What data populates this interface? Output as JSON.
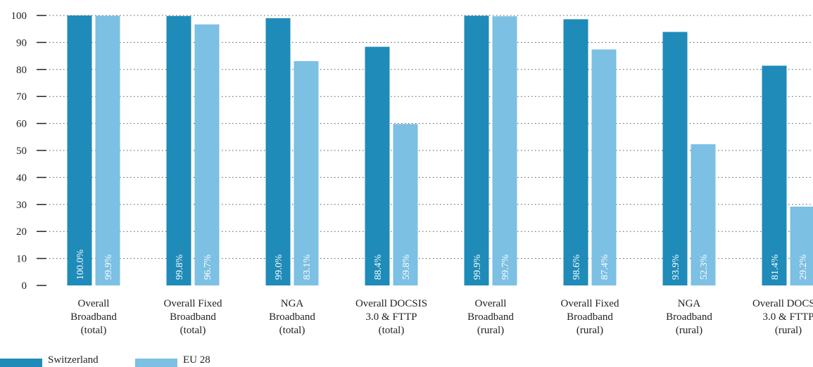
{
  "chart_data": {
    "type": "bar",
    "ylim": [
      0,
      100
    ],
    "yticks": [
      0,
      10,
      20,
      30,
      40,
      50,
      60,
      70,
      80,
      90,
      100
    ],
    "grid": "dotted-horizontal",
    "legend_placement": "bottom-left",
    "categories": [
      [
        "Overall",
        "Broadband",
        "(total)"
      ],
      [
        "Overall Fixed",
        "Broadband",
        "(total)"
      ],
      [
        "NGA",
        "Broadband",
        "(total)"
      ],
      [
        "Overall DOCSIS",
        "3.0 & FTTP",
        "(total)"
      ],
      [
        "Overall",
        "Broadband",
        "(rural)"
      ],
      [
        "Overall Fixed",
        "Broadband",
        "(rural)"
      ],
      [
        "NGA",
        "Broadband",
        "(rural)"
      ],
      [
        "Overall DOCSIS",
        "3.0 & FTTP",
        "(rural)"
      ]
    ],
    "series": [
      {
        "name": "Switzerland",
        "color": "#1f8bb8",
        "values": [
          100.0,
          99.8,
          99.0,
          88.4,
          99.9,
          98.6,
          93.9,
          81.4
        ],
        "labels": [
          "100.0%",
          "99.8%",
          "99.0%",
          "88.4%",
          "99.9%",
          "98.6%",
          "93.9%",
          "81.4%"
        ]
      },
      {
        "name": "EU 28",
        "color": "#7cc0e3",
        "values": [
          99.9,
          96.7,
          83.1,
          59.8,
          99.7,
          87.4,
          52.3,
          29.2
        ],
        "labels": [
          "99.9%",
          "96.7%",
          "83.1%",
          "59.8%",
          "99.7%",
          "87.4%",
          "52.3%",
          "29.2%"
        ]
      }
    ]
  }
}
